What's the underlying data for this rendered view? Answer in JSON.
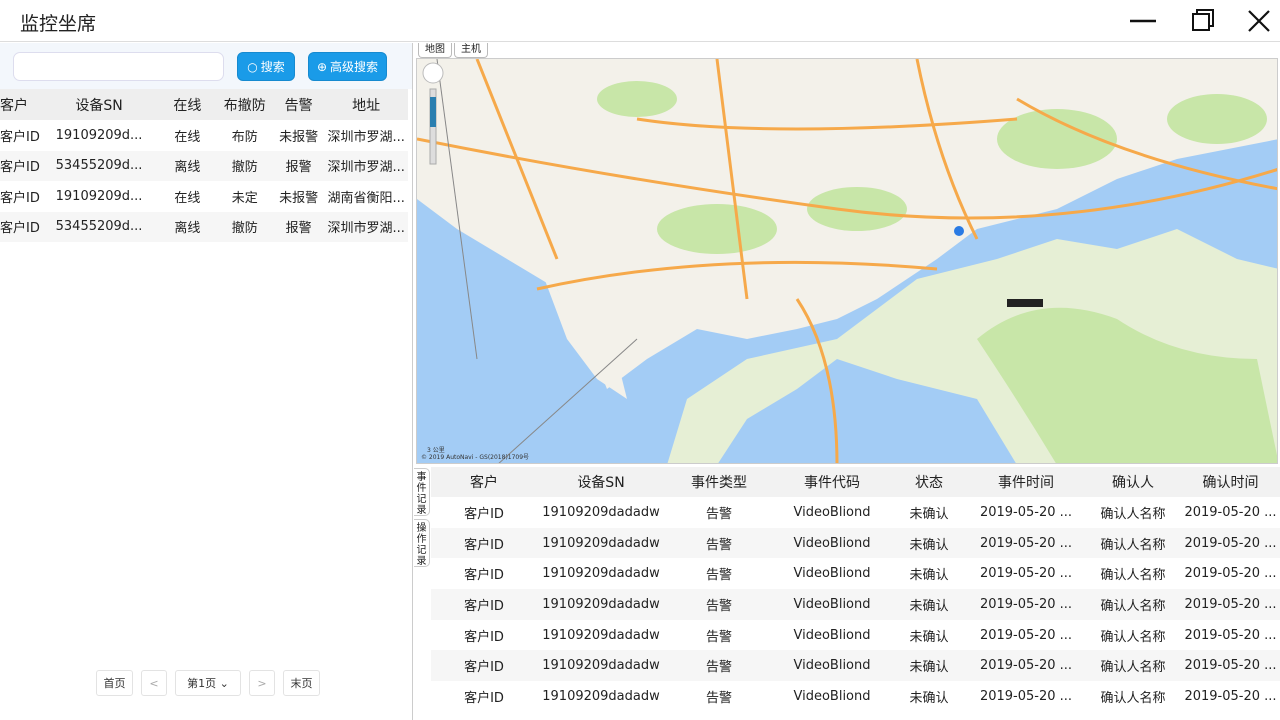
{
  "window": {
    "title": "监控坐席"
  },
  "search": {
    "placeholder": "",
    "search_label": "搜索",
    "advanced_label": "高级搜索"
  },
  "device_table": {
    "columns": [
      "客户",
      "设备SN",
      "在线",
      "布撤防",
      "告警",
      "地址"
    ],
    "rows": [
      [
        "客户ID",
        "19109209d...",
        "在线",
        "布防",
        "未报警",
        "深圳市罗湖..."
      ],
      [
        "客户ID",
        "53455209d...",
        "离线",
        "撤防",
        "报警",
        "深圳市罗湖..."
      ],
      [
        "客户ID",
        "19109209d...",
        "在线",
        "未定",
        "未报警",
        "湖南省衡阳..."
      ],
      [
        "客户ID",
        "53455209d...",
        "离线",
        "撤防",
        "报警",
        "深圳市罗湖..."
      ]
    ]
  },
  "pager": {
    "first": "首页",
    "prev": "<",
    "page": "第1页",
    "next": ">",
    "last": "末页"
  },
  "map": {
    "tabs": [
      "地图",
      "主机"
    ],
    "copyright": "© 2019 AutoNavi - GS(2018)1709号",
    "scale": "3 公里",
    "colors": {
      "sea": "#a3ccf5",
      "land": "#f3f1ea",
      "park": "#c8e6a8",
      "road": "#f6a94a"
    }
  },
  "side_tabs": [
    "事件记录",
    "操作记录"
  ],
  "event_table": {
    "columns": [
      "客户",
      "设备SN",
      "事件类型",
      "事件代码",
      "状态",
      "事件时间",
      "确认人",
      "确认时间"
    ],
    "rows": [
      [
        "客户ID",
        "19109209dadadw",
        "告警",
        "VideoBliond",
        "未确认",
        "2019-05-20 ...",
        "确认人名称",
        "2019-05-20 ..."
      ],
      [
        "客户ID",
        "19109209dadadw",
        "告警",
        "VideoBliond",
        "未确认",
        "2019-05-20 ...",
        "确认人名称",
        "2019-05-20 ..."
      ],
      [
        "客户ID",
        "19109209dadadw",
        "告警",
        "VideoBliond",
        "未确认",
        "2019-05-20 ...",
        "确认人名称",
        "2019-05-20 ..."
      ],
      [
        "客户ID",
        "19109209dadadw",
        "告警",
        "VideoBliond",
        "未确认",
        "2019-05-20 ...",
        "确认人名称",
        "2019-05-20 ..."
      ],
      [
        "客户ID",
        "19109209dadadw",
        "告警",
        "VideoBliond",
        "未确认",
        "2019-05-20 ...",
        "确认人名称",
        "2019-05-20 ..."
      ],
      [
        "客户ID",
        "19109209dadadw",
        "告警",
        "VideoBliond",
        "未确认",
        "2019-05-20 ...",
        "确认人名称",
        "2019-05-20 ..."
      ],
      [
        "客户ID",
        "19109209dadadw",
        "告警",
        "VideoBliond",
        "未确认",
        "2019-05-20 ...",
        "确认人名称",
        "2019-05-20 ..."
      ]
    ]
  }
}
